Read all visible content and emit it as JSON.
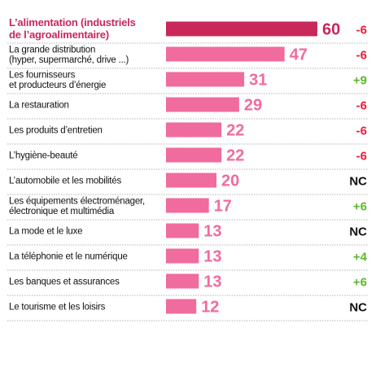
{
  "chart_data": {
    "type": "bar",
    "orientation": "horizontal",
    "categories": [
      [
        "L’alimentation (industriels",
        "de l’agroalimentaire)"
      ],
      [
        "La grande distribution",
        "(hyper, supermarché, drive ...)"
      ],
      [
        "Les fournisseurs",
        "et producteurs d’énergie"
      ],
      [
        "La restauration"
      ],
      [
        "Les produits d’entretien"
      ],
      [
        "L’hygiène-beauté"
      ],
      [
        "L’automobile et les mobilités"
      ],
      [
        "Les équipements électroménager,",
        "électronique et multimédia"
      ],
      [
        "La mode et le luxe"
      ],
      [
        "La téléphonie et le numérique"
      ],
      [
        "Les banques et assurances"
      ],
      [
        "Le tourisme et les loisirs"
      ]
    ],
    "values": [
      60,
      47,
      31,
      29,
      22,
      22,
      20,
      17,
      13,
      13,
      13,
      12
    ],
    "changes": [
      "-6",
      "-6",
      "+9",
      "-6",
      "-6",
      "-6",
      "NC",
      "+6",
      "NC",
      "+4",
      "+6",
      "NC"
    ],
    "highlight_index": 0,
    "xlim": [
      0,
      60
    ],
    "grid": false,
    "colors": {
      "highlight_bar": "#c8285a",
      "bar": "#f06b9e",
      "value_text": "#f06b9e",
      "highlight_text": "#c8285a",
      "negative": "#e8203a",
      "positive": "#5cb82e",
      "neutral": "#111111",
      "separator": "#9a9a9a"
    }
  }
}
